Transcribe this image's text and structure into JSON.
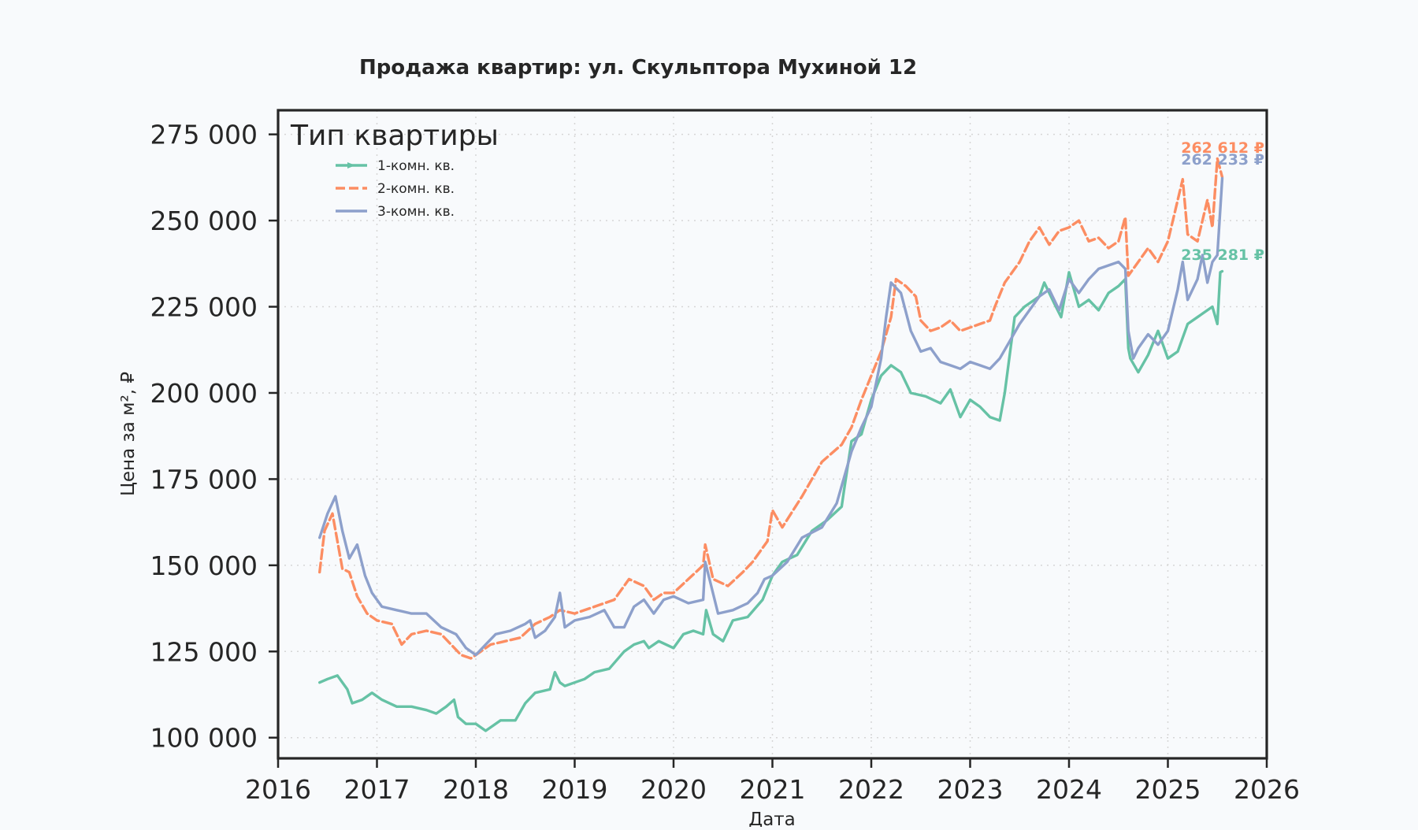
{
  "chart_data": {
    "type": "line",
    "title": "Продажа квартир: ул. Скульптора Мухиной 12",
    "xlabel": "Дата",
    "ylabel": "Цена за м², ₽",
    "xlim": [
      2016,
      2026
    ],
    "ylim": [
      94000,
      282000
    ],
    "x_ticks": [
      "2016",
      "2017",
      "2018",
      "2019",
      "2020",
      "2021",
      "2022",
      "2023",
      "2024",
      "2025",
      "2026"
    ],
    "y_ticks": [
      "100 000",
      "125 000",
      "150 000",
      "175 000",
      "200 000",
      "225 000",
      "250 000",
      "275 000"
    ],
    "y_tick_values": [
      100000,
      125000,
      150000,
      175000,
      200000,
      225000,
      250000,
      275000
    ],
    "grid": true,
    "legend": {
      "title": "Тип квартиры",
      "placement": "top-left"
    },
    "series": [
      {
        "name": "1-комн. кв.",
        "color": "#66c2a5",
        "style": "solid-marker",
        "end_label": "235 281 ₽",
        "x": [
          2016.42,
          2016.5,
          2016.6,
          2016.7,
          2016.75,
          2016.85,
          2016.95,
          2017.05,
          2017.2,
          2017.35,
          2017.5,
          2017.6,
          2017.7,
          2017.78,
          2017.82,
          2017.9,
          2018.0,
          2018.1,
          2018.15,
          2018.25,
          2018.4,
          2018.5,
          2018.6,
          2018.75,
          2018.8,
          2018.85,
          2018.9,
          2019.0,
          2019.1,
          2019.2,
          2019.35,
          2019.5,
          2019.6,
          2019.7,
          2019.75,
          2019.85,
          2020.0,
          2020.1,
          2020.2,
          2020.3,
          2020.33,
          2020.4,
          2020.5,
          2020.6,
          2020.75,
          2020.9,
          2021.0,
          2021.1,
          2021.25,
          2021.4,
          2021.55,
          2021.7,
          2021.72,
          2021.8,
          2021.9,
          2022.0,
          2022.1,
          2022.2,
          2022.3,
          2022.4,
          2022.55,
          2022.7,
          2022.8,
          2022.9,
          2023.0,
          2023.1,
          2023.2,
          2023.3,
          2023.35,
          2023.45,
          2023.55,
          2023.7,
          2023.75,
          2023.85,
          2023.92,
          2024.0,
          2024.1,
          2024.2,
          2024.3,
          2024.4,
          2024.5,
          2024.57,
          2024.6,
          2024.62,
          2024.7,
          2024.8,
          2024.9,
          2025.0,
          2025.1,
          2025.2,
          2025.3,
          2025.4,
          2025.45,
          2025.5,
          2025.53,
          2025.55
        ],
        "values": [
          116000,
          117000,
          118000,
          114000,
          110000,
          111000,
          113000,
          111000,
          109000,
          109000,
          108000,
          107000,
          109000,
          111000,
          106000,
          104000,
          104000,
          102000,
          103000,
          105000,
          105000,
          110000,
          113000,
          114000,
          119000,
          116000,
          115000,
          116000,
          117000,
          119000,
          120000,
          125000,
          127000,
          128000,
          126000,
          128000,
          126000,
          130000,
          131000,
          130000,
          137000,
          130000,
          128000,
          134000,
          135000,
          140000,
          147000,
          151000,
          153000,
          160000,
          163000,
          167000,
          171000,
          186000,
          188000,
          198000,
          205000,
          208000,
          206000,
          200000,
          199000,
          197000,
          201000,
          193000,
          198000,
          196000,
          193000,
          192000,
          200000,
          222000,
          225000,
          228000,
          232000,
          226000,
          222000,
          235000,
          225000,
          227000,
          224000,
          229000,
          231000,
          233000,
          213000,
          210000,
          206000,
          211000,
          218000,
          210000,
          212000,
          220000,
          222000,
          224000,
          225000,
          220000,
          235000,
          235281
        ]
      },
      {
        "name": "2-комн. кв.",
        "color": "#fc8d62",
        "style": "dashed",
        "end_label": "262 612 ₽",
        "x": [
          2016.42,
          2016.47,
          2016.55,
          2016.6,
          2016.65,
          2016.72,
          2016.8,
          2016.9,
          2017.0,
          2017.15,
          2017.25,
          2017.35,
          2017.5,
          2017.65,
          2017.75,
          2017.85,
          2017.95,
          2018.05,
          2018.15,
          2018.3,
          2018.45,
          2018.6,
          2018.75,
          2018.85,
          2019.0,
          2019.2,
          2019.4,
          2019.55,
          2019.7,
          2019.8,
          2019.9,
          2020.0,
          2020.15,
          2020.3,
          2020.32,
          2020.4,
          2020.55,
          2020.7,
          2020.8,
          2020.95,
          2021.0,
          2021.1,
          2021.3,
          2021.5,
          2021.7,
          2021.8,
          2021.9,
          2022.0,
          2022.1,
          2022.2,
          2022.25,
          2022.35,
          2022.45,
          2022.5,
          2022.6,
          2022.7,
          2022.8,
          2022.9,
          2023.0,
          2023.1,
          2023.2,
          2023.25,
          2023.35,
          2023.5,
          2023.6,
          2023.7,
          2023.8,
          2023.9,
          2024.0,
          2024.1,
          2024.2,
          2024.3,
          2024.4,
          2024.5,
          2024.57,
          2024.6,
          2024.7,
          2024.8,
          2024.9,
          2025.0,
          2025.05,
          2025.15,
          2025.2,
          2025.3,
          2025.4,
          2025.45,
          2025.5,
          2025.55
        ],
        "values": [
          148000,
          160000,
          165000,
          157000,
          149000,
          148000,
          141000,
          136000,
          134000,
          133000,
          127000,
          130000,
          131000,
          130000,
          127000,
          124000,
          123000,
          125000,
          127000,
          128000,
          129000,
          133000,
          135000,
          137000,
          136000,
          138000,
          140000,
          146000,
          144000,
          140000,
          142000,
          142000,
          146000,
          150000,
          156000,
          146000,
          144000,
          148000,
          151000,
          157000,
          166000,
          161000,
          170000,
          180000,
          185000,
          190000,
          198000,
          205000,
          212000,
          222000,
          233000,
          231000,
          228000,
          221000,
          218000,
          219000,
          221000,
          218000,
          219000,
          220000,
          221000,
          225000,
          232000,
          238000,
          244000,
          248000,
          243000,
          247000,
          248000,
          250000,
          244000,
          245000,
          242000,
          244000,
          251000,
          234000,
          238000,
          242000,
          238000,
          244000,
          250000,
          262000,
          246000,
          244000,
          256000,
          248000,
          268000,
          262612
        ]
      },
      {
        "name": "3-комн. кв.",
        "color": "#8da0cb",
        "style": "solid",
        "end_label": "262 233 ₽",
        "x": [
          2016.42,
          2016.5,
          2016.58,
          2016.65,
          2016.72,
          2016.8,
          2016.88,
          2016.95,
          2017.05,
          2017.2,
          2017.35,
          2017.5,
          2017.65,
          2017.8,
          2017.9,
          2018.0,
          2018.1,
          2018.2,
          2018.35,
          2018.5,
          2018.55,
          2018.6,
          2018.7,
          2018.8,
          2018.85,
          2018.9,
          2019.0,
          2019.15,
          2019.3,
          2019.4,
          2019.5,
          2019.6,
          2019.7,
          2019.8,
          2019.9,
          2020.0,
          2020.15,
          2020.3,
          2020.32,
          2020.45,
          2020.6,
          2020.75,
          2020.85,
          2020.92,
          2021.0,
          2021.15,
          2021.3,
          2021.5,
          2021.65,
          2021.72,
          2021.8,
          2021.9,
          2022.0,
          2022.1,
          2022.15,
          2022.2,
          2022.3,
          2022.4,
          2022.5,
          2022.6,
          2022.7,
          2022.8,
          2022.9,
          2023.0,
          2023.1,
          2023.2,
          2023.3,
          2023.4,
          2023.5,
          2023.6,
          2023.7,
          2023.8,
          2023.9,
          2024.0,
          2024.1,
          2024.2,
          2024.3,
          2024.4,
          2024.5,
          2024.57,
          2024.6,
          2024.65,
          2024.7,
          2024.8,
          2024.9,
          2025.0,
          2025.1,
          2025.15,
          2025.2,
          2025.3,
          2025.35,
          2025.4,
          2025.45,
          2025.5,
          2025.55
        ],
        "values": [
          158000,
          165000,
          170000,
          160000,
          152000,
          156000,
          147000,
          142000,
          138000,
          137000,
          136000,
          136000,
          132000,
          130000,
          126000,
          124000,
          127000,
          130000,
          131000,
          133000,
          134000,
          129000,
          131000,
          135000,
          142000,
          132000,
          134000,
          135000,
          137000,
          132000,
          132000,
          138000,
          140000,
          136000,
          140000,
          141000,
          139000,
          140000,
          151000,
          136000,
          137000,
          139000,
          142000,
          146000,
          147000,
          151000,
          158000,
          161000,
          168000,
          175000,
          183000,
          190000,
          196000,
          210000,
          222000,
          232000,
          229000,
          218000,
          212000,
          213000,
          209000,
          208000,
          207000,
          209000,
          208000,
          207000,
          210000,
          215000,
          220000,
          224000,
          228000,
          230000,
          224000,
          233000,
          229000,
          233000,
          236000,
          237000,
          238000,
          236000,
          218000,
          210000,
          213000,
          217000,
          214000,
          218000,
          230000,
          238000,
          227000,
          233000,
          240000,
          232000,
          238000,
          240000,
          262233
        ]
      }
    ]
  }
}
